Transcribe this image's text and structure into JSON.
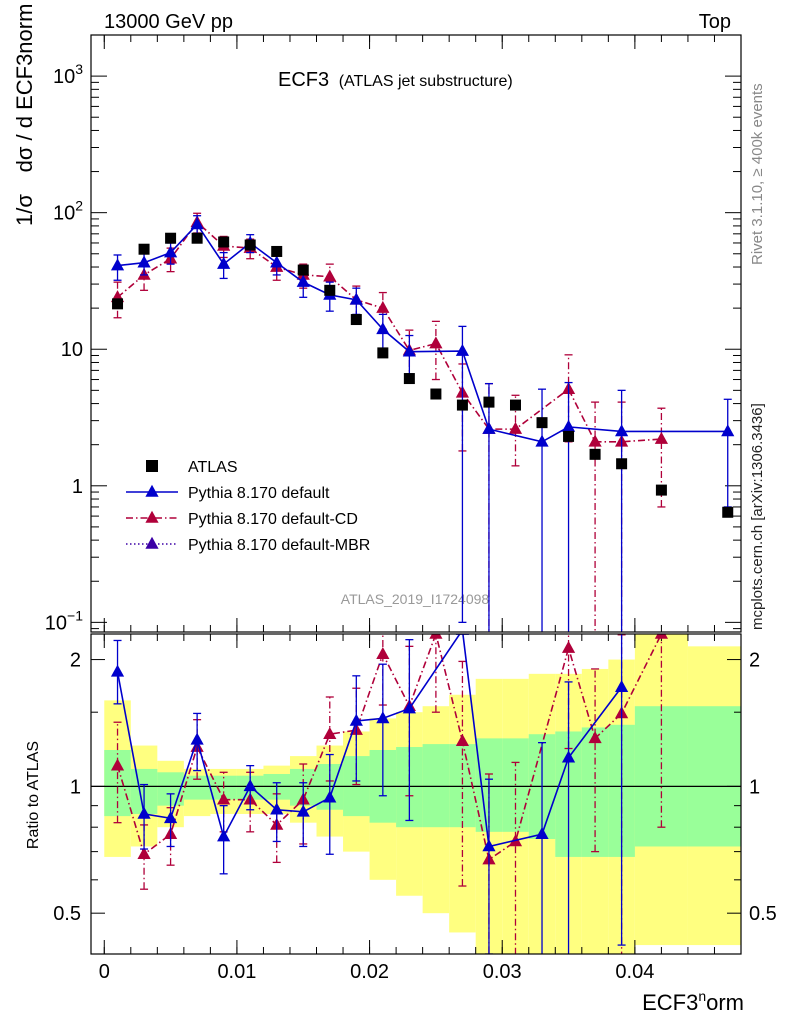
{
  "header": {
    "left": "13000 GeV pp",
    "right": "Top"
  },
  "side_labels": {
    "rivet": "Rivet 3.1.10, ≥ 400k events",
    "mcplots": "mcplots.cern.ch [arXiv:1306.3436]"
  },
  "main_plot": {
    "title": "ECF3",
    "subtitle": "(ATLAS jet substructure)",
    "watermark": "ATLAS_2019_I1724098"
  },
  "y_axis": {
    "label_main": "dσ / d ECF3norm",
    "prefix": "1/σ"
  },
  "ratio_axis": {
    "label": "Ratio to ATLAS"
  },
  "x_axis": {
    "label_main": "ECF3",
    "label_sup": "n",
    "label_tail": "orm"
  },
  "legend": [
    {
      "name": "ATLAS",
      "color": "#000000",
      "style": "square"
    },
    {
      "name": "Pythia 8.170 default",
      "color": "#0000cc",
      "style": "solid"
    },
    {
      "name": "Pythia 8.170 default-CD",
      "color": "#b0003a",
      "style": "dashdot"
    },
    {
      "name": "Pythia 8.170 default-MBR",
      "color": "#3b00a6",
      "style": "dotted"
    }
  ],
  "chart_data": {
    "type": "scatter",
    "title": "ECF3 (ATLAS jet substructure)",
    "xlabel": "ECF3norm",
    "ylabel": "1/σ dσ/d ECF3norm",
    "xlim": [
      -0.001,
      0.048
    ],
    "ylim": [
      0.085,
      2000
    ],
    "yscale": "log",
    "ratio_ylim": [
      0.4,
      2.3
    ],
    "x_ticks": [
      {
        "v": 0,
        "label": "0"
      },
      {
        "v": 0.01,
        "label": "0.01"
      },
      {
        "v": 0.02,
        "label": "0.02"
      },
      {
        "v": 0.03,
        "label": "0.03"
      },
      {
        "v": 0.04,
        "label": "0.04"
      }
    ],
    "y_ticks": [
      {
        "v": 0.1,
        "base": "10",
        "exp": "−1"
      },
      {
        "v": 1,
        "base": "1",
        "exp": ""
      },
      {
        "v": 10,
        "base": "10",
        "exp": ""
      },
      {
        "v": 100,
        "base": "10",
        "exp": "2"
      },
      {
        "v": 1000,
        "base": "10",
        "exp": "3"
      }
    ],
    "ratio_ticks": [
      {
        "v": 0.5,
        "label": "0.5"
      },
      {
        "v": 1,
        "label": "1"
      },
      {
        "v": 2,
        "label": "2"
      }
    ],
    "data": {
      "name": "ATLAS",
      "x": [
        0.001,
        0.003,
        0.005,
        0.007,
        0.009,
        0.011,
        0.013,
        0.015,
        0.017,
        0.019,
        0.021,
        0.023,
        0.025,
        0.027,
        0.029,
        0.031,
        0.033,
        0.035,
        0.037,
        0.039,
        0.042,
        0.047
      ],
      "y": [
        21.5,
        54,
        65,
        65,
        61,
        58,
        52,
        38,
        27,
        16.5,
        9.4,
        6.1,
        4.7,
        3.9,
        4.1,
        3.9,
        2.9,
        2.3,
        1.7,
        1.45,
        0.93,
        0.64
      ]
    },
    "band_edges": [
      0,
      0.002,
      0.004,
      0.006,
      0.008,
      0.01,
      0.012,
      0.014,
      0.016,
      0.018,
      0.02,
      0.022,
      0.024,
      0.026,
      0.028,
      0.03,
      0.032,
      0.034,
      0.036,
      0.038,
      0.04,
      0.044,
      0.048
    ],
    "band_inner": [
      [
        0.85,
        1.22
      ],
      [
        0.86,
        1.1
      ],
      [
        0.9,
        1.08
      ],
      [
        0.93,
        1.06
      ],
      [
        0.93,
        1.06
      ],
      [
        0.93,
        1.06
      ],
      [
        0.93,
        1.07
      ],
      [
        0.9,
        1.1
      ],
      [
        0.88,
        1.13
      ],
      [
        0.85,
        1.18
      ],
      [
        0.82,
        1.22
      ],
      [
        0.8,
        1.24
      ],
      [
        0.8,
        1.26
      ],
      [
        0.8,
        1.26
      ],
      [
        0.78,
        1.3
      ],
      [
        0.78,
        1.3
      ],
      [
        0.75,
        1.33
      ],
      [
        0.68,
        1.35
      ],
      [
        0.68,
        1.38
      ],
      [
        0.68,
        1.4
      ],
      [
        0.72,
        1.55
      ],
      [
        0.72,
        1.55
      ]
    ],
    "band_outer": [
      [
        0.68,
        1.6
      ],
      [
        0.72,
        1.25
      ],
      [
        0.8,
        1.15
      ],
      [
        0.85,
        1.1
      ],
      [
        0.86,
        1.1
      ],
      [
        0.86,
        1.1
      ],
      [
        0.86,
        1.12
      ],
      [
        0.82,
        1.18
      ],
      [
        0.76,
        1.25
      ],
      [
        0.7,
        1.35
      ],
      [
        0.6,
        1.45
      ],
      [
        0.55,
        1.5
      ],
      [
        0.5,
        1.55
      ],
      [
        0.45,
        1.65
      ],
      [
        0.4,
        1.8
      ],
      [
        0.4,
        1.8
      ],
      [
        0.4,
        1.85
      ],
      [
        0.4,
        1.85
      ],
      [
        0.4,
        1.9
      ],
      [
        0.4,
        2.0
      ],
      [
        0.42,
        2.3
      ],
      [
        0.42,
        2.15
      ]
    ],
    "series": [
      {
        "name": "Pythia 8.170 default",
        "color": "#0000cc",
        "style": "solid",
        "x": [
          0.001,
          0.003,
          0.005,
          0.007,
          0.009,
          0.011,
          0.013,
          0.015,
          0.017,
          0.019,
          0.021,
          0.023,
          0.027,
          0.029,
          0.033,
          0.035,
          0.039,
          0.047
        ],
        "y": [
          41,
          43,
          51,
          82,
          42,
          60,
          43,
          31,
          25,
          23,
          14,
          9.6,
          9.7,
          2.6,
          2.1,
          2.7,
          2.5,
          2.5
        ],
        "err": [
          [
            9,
            8
          ],
          [
            8,
            8
          ],
          [
            9,
            9
          ],
          [
            13,
            13
          ],
          [
            9,
            9
          ],
          [
            9,
            9
          ],
          [
            8,
            8
          ],
          [
            7,
            7
          ],
          [
            6,
            6
          ],
          [
            5,
            5
          ],
          [
            4,
            4
          ],
          [
            3,
            3
          ],
          [
            9.6,
            5
          ],
          [
            2.6,
            3
          ],
          [
            2.1,
            3
          ],
          [
            2.7,
            3
          ],
          [
            2.5,
            2.5
          ],
          [
            1.8,
            1.8
          ]
        ],
        "ratio": [
          1.87,
          0.86,
          0.84,
          1.29,
          0.76,
          1.0,
          0.88,
          0.87,
          0.94,
          1.43,
          1.45,
          1.53,
          2.35,
          0.72,
          0.77,
          1.17,
          1.72
        ],
        "ratio_x": [
          0.001,
          0.003,
          0.005,
          0.007,
          0.009,
          0.011,
          0.013,
          0.015,
          0.017,
          0.019,
          0.021,
          0.023,
          0.027,
          0.029,
          0.033,
          0.035,
          0.039
        ],
        "ratio_err": [
          [
            0.3,
            0.35
          ],
          [
            0.15,
            0.15
          ],
          [
            0.12,
            0.12
          ],
          [
            0.2,
            0.2
          ],
          [
            0.14,
            0.14
          ],
          [
            0.12,
            0.12
          ],
          [
            0.14,
            0.14
          ],
          [
            0.15,
            0.15
          ],
          [
            0.25,
            0.25
          ],
          [
            0.4,
            0.4
          ],
          [
            0.5,
            0.5
          ],
          [
            0.7,
            0.7
          ],
          [
            0,
            0
          ],
          [
            0.32,
            0.32
          ],
          [
            0.38,
            0.5
          ],
          [
            0.78,
            0.6
          ],
          [
            1.3,
            0.8
          ]
        ]
      },
      {
        "name": "Pythia 8.170 default-CD",
        "color": "#b0003a",
        "style": "dashdot",
        "x": [
          0.001,
          0.003,
          0.005,
          0.007,
          0.009,
          0.011,
          0.013,
          0.015,
          0.017,
          0.019,
          0.021,
          0.023,
          0.025,
          0.027,
          0.029,
          0.031,
          0.035,
          0.037,
          0.039,
          0.042
        ],
        "y": [
          24,
          35,
          46,
          85,
          57,
          55,
          40,
          35,
          34,
          23,
          20,
          9.8,
          11,
          4.8,
          2.6,
          2.6,
          5.1,
          2.1,
          2.1,
          2.2
        ],
        "err": [
          [
            7,
            7
          ],
          [
            8,
            8
          ],
          [
            9,
            9
          ],
          [
            14,
            14
          ],
          [
            10,
            10
          ],
          [
            9,
            9
          ],
          [
            8,
            8
          ],
          [
            7,
            7
          ],
          [
            8,
            8
          ],
          [
            6,
            6
          ],
          [
            6,
            6
          ],
          [
            4,
            4
          ],
          [
            5,
            5
          ],
          [
            3,
            3
          ],
          [
            2.6,
            3
          ],
          [
            1.2,
            2
          ],
          [
            3,
            4
          ],
          [
            2.1,
            2
          ],
          [
            2.1,
            2
          ],
          [
            1.5,
            1.5
          ]
        ],
        "ratio": [
          1.12,
          0.69,
          0.77,
          1.24,
          0.93,
          0.93,
          0.81,
          0.93,
          1.33,
          1.36,
          2.06,
          1.55,
          2.3,
          1.28,
          0.67,
          0.74,
          2.13,
          1.3,
          1.49,
          2.3
        ],
        "ratio_x": [
          0.001,
          0.003,
          0.005,
          0.007,
          0.009,
          0.011,
          0.013,
          0.015,
          0.017,
          0.019,
          0.021,
          0.023,
          0.025,
          0.027,
          0.029,
          0.031,
          0.035,
          0.037,
          0.039,
          0.042
        ],
        "ratio_err": [
          [
            0.3,
            0.3
          ],
          [
            0.12,
            0.12
          ],
          [
            0.12,
            0.12
          ],
          [
            0.2,
            0.2
          ],
          [
            0.15,
            0.15
          ],
          [
            0.15,
            0.15
          ],
          [
            0.15,
            0.15
          ],
          [
            0.2,
            0.2
          ],
          [
            0.3,
            0.3
          ],
          [
            0.35,
            0.35
          ],
          [
            0.5,
            0.5
          ],
          [
            0.6,
            0.6
          ],
          [
            0.8,
            0.8
          ],
          [
            0.7,
            0.7
          ],
          [
            0.4,
            0.4
          ],
          [
            0.4,
            0.4
          ],
          [
            0.9,
            0.5
          ],
          [
            0.6,
            0.6
          ],
          [
            1.1,
            0.8
          ],
          [
            1.5,
            0
          ]
        ]
      },
      {
        "name": "Pythia 8.170 default-MBR",
        "color": "#3b00a6",
        "style": "dotted",
        "x": [],
        "y": [],
        "err": [],
        "ratio": [],
        "ratio_x": [],
        "ratio_err": []
      }
    ]
  }
}
